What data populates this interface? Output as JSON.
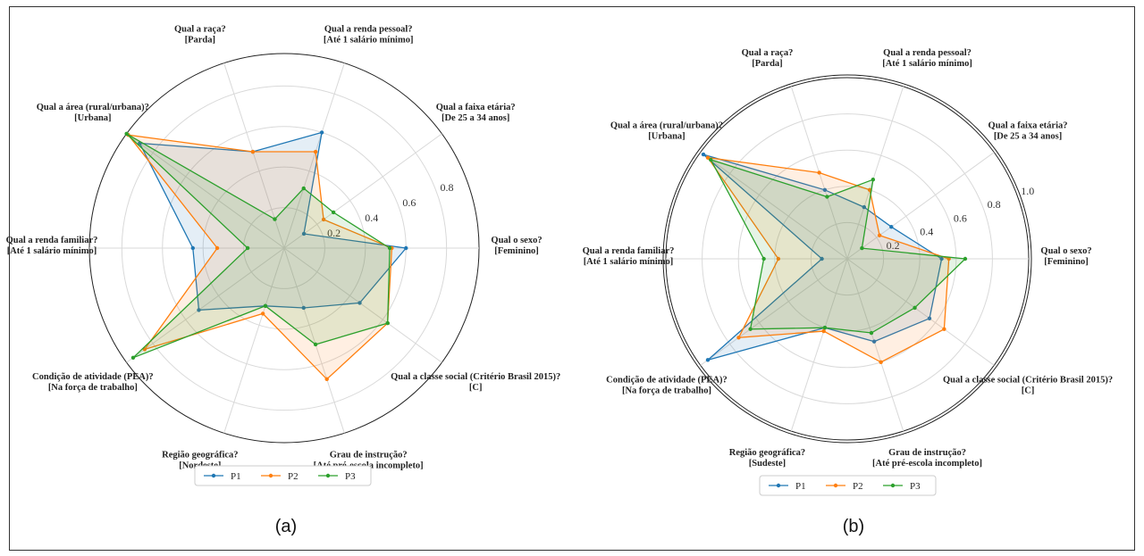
{
  "chart_data": [
    {
      "type": "radar",
      "caption": "(a)",
      "categories": [
        [
          "Qual o sexo?",
          "[Feminino]"
        ],
        [
          "Qual a faixa etária?",
          "[De 25 a 34 anos]"
        ],
        [
          "Qual a renda pessoal?",
          "[Até 1 salário mínimo]"
        ],
        [
          "Qual a raça?",
          "[Parda]"
        ],
        [
          "Qual a área (rural/urbana)?",
          "[Urbana]"
        ],
        [
          "Qual a renda familiar?",
          "[Até 1 salário mínimo]"
        ],
        [
          "Condição de atividade (PEA)?",
          "[Na força de trabalho]"
        ],
        [
          "Região geográfica?",
          "[Nordeste]"
        ],
        [
          "Grau de instrução?",
          "[Até pré-escola incompleto]"
        ],
        [
          "Qual a classe social (Critério Brasil 2015)?",
          "[C]"
        ]
      ],
      "rticks": [
        "0.2",
        "0.4",
        "0.6",
        "0.8"
      ],
      "rticks_val": [
        0.2,
        0.4,
        0.6,
        0.8
      ],
      "rmax": 0.96,
      "series": [
        {
          "name": "P1",
          "color": "#1f77b4",
          "values": [
            0.6,
            0.12,
            0.6,
            0.5,
            0.88,
            0.45,
            0.52,
            0.3,
            0.31,
            0.46
          ]
        },
        {
          "name": "P2",
          "color": "#ff7f0e",
          "values": [
            0.53,
            0.24,
            0.5,
            0.5,
            0.95,
            0.33,
            0.85,
            0.34,
            0.68,
            0.63
          ]
        },
        {
          "name": "P3",
          "color": "#2ca02c",
          "values": [
            0.52,
            0.3,
            0.31,
            0.15,
            0.96,
            0.18,
            0.92,
            0.3,
            0.5,
            0.63
          ]
        }
      ]
    },
    {
      "type": "radar",
      "caption": "(b)",
      "categories": [
        [
          "Qual o sexo?",
          "[Feminino]"
        ],
        [
          "Qual a faixa etária?",
          "[De 25 a 34 anos]"
        ],
        [
          "Qual a renda pessoal?",
          "[Até 1 salário mínimo]"
        ],
        [
          "Qual a raça?",
          "[Parda]"
        ],
        [
          "Qual a área (rural/urbana)?",
          "[Urbana]"
        ],
        [
          "Qual a renda familiar?",
          "[Até 1 salário mínimo]"
        ],
        [
          "Condição de atividade (PEA)?",
          "[Na força de trabalho]"
        ],
        [
          "Região geográfica?",
          "[Sudeste]"
        ],
        [
          "Grau de instrução?",
          "[Até pré-escola incompleto]"
        ],
        [
          "Qual a classe social (Critério Brasil 2015)?",
          "[C]"
        ]
      ],
      "rticks": [
        "0.2",
        "0.4",
        "0.6",
        "0.8",
        "1.0"
      ],
      "rticks_val": [
        0.2,
        0.4,
        0.6,
        0.8,
        1.0
      ],
      "rmax": 1.0,
      "series": [
        {
          "name": "P1",
          "color": "#1f77b4",
          "values": [
            0.52,
            0.3,
            0.3,
            0.4,
            0.98,
            0.14,
            0.95,
            0.4,
            0.48,
            0.56
          ]
        },
        {
          "name": "P2",
          "color": "#ff7f0e",
          "values": [
            0.56,
            0.22,
            0.4,
            0.5,
            0.95,
            0.38,
            0.74,
            0.42,
            0.6,
            0.66
          ]
        },
        {
          "name": "P3",
          "color": "#2ca02c",
          "values": [
            0.65,
            0.1,
            0.46,
            0.36,
            0.93,
            0.46,
            0.66,
            0.4,
            0.43,
            0.46
          ]
        }
      ]
    }
  ]
}
